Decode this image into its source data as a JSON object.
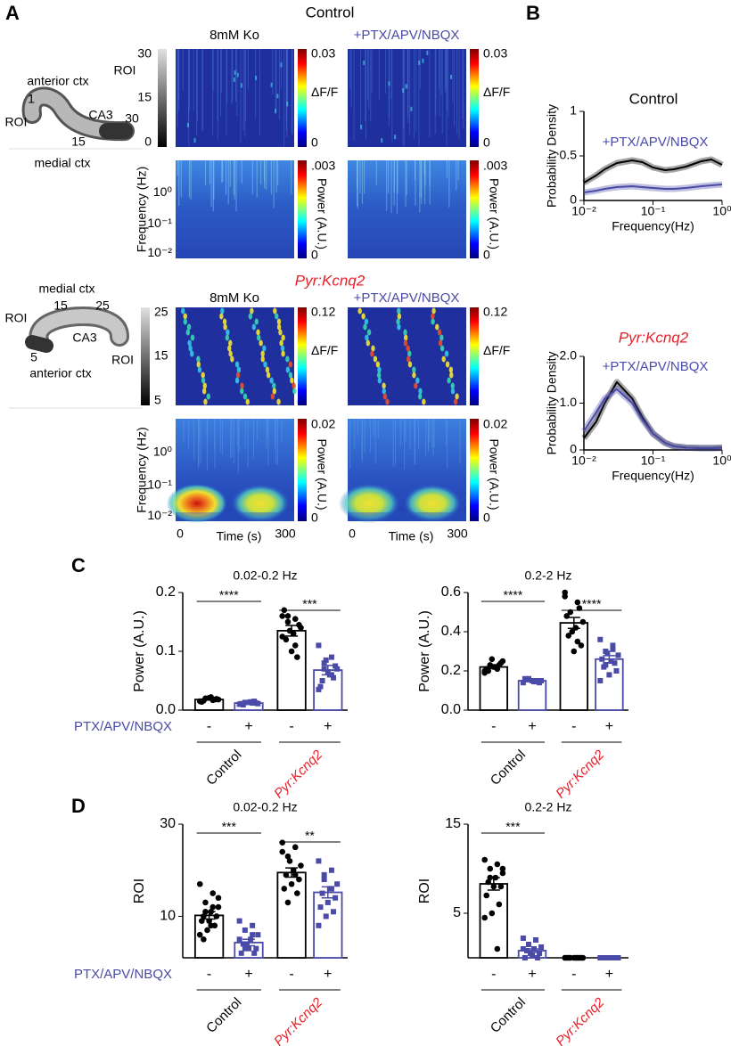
{
  "figure": {
    "panels": [
      "A",
      "B",
      "C",
      "D"
    ],
    "control": {
      "title": "Control",
      "columns": [
        "8mM Ko",
        "+PTX/APV/NBQX"
      ],
      "roi_label": "ROI",
      "roi_ticks": [
        "30",
        "15",
        "0"
      ],
      "dff_label": "ΔF/F",
      "dff_ticks": [
        "0.03",
        "0"
      ],
      "power_label": "Power (A.U.)",
      "power_ticks": [
        ".003",
        "0"
      ],
      "freq_label": "Frequency (Hz)",
      "freq_ticks": [
        "10⁰",
        "10⁻¹",
        "10⁻²"
      ],
      "map": [
        "anterior ctx",
        "1",
        "ROI",
        "CA3",
        "30",
        "15",
        "medial ctx"
      ]
    },
    "kcnq2": {
      "title": "Pyr:Kcnq2",
      "columns": [
        "8mM Ko",
        "+PTX/APV/NBQX"
      ],
      "roi_label": "ROI",
      "roi_ticks": [
        "25",
        "15",
        "5"
      ],
      "dff_label": "ΔF/F",
      "dff_ticks": [
        "0.12"
      ],
      "power_label": "Power (A.U.)",
      "power_ticks": [
        "0.02",
        "0"
      ],
      "freq_label": "Frequency (Hz)",
      "freq_ticks": [
        "10⁰",
        "10⁻¹",
        "10⁻²"
      ],
      "time_label": "Time (s)",
      "time_ticks": [
        "0",
        "300"
      ],
      "map": [
        "medial ctx",
        "15",
        "25",
        "ROI",
        "CA3",
        "5",
        "anterior ctx"
      ]
    }
  },
  "chart_data": [
    {
      "type": "line",
      "title": "Control",
      "xlabel": "Frequency(Hz)",
      "ylabel": "Probability Density",
      "log_x": true,
      "xlim": [
        0.01,
        1
      ],
      "ylim": [
        0,
        1
      ],
      "xticks": [
        {
          "value": 0.01,
          "label": "10⁻²"
        },
        {
          "value": 0.1,
          "label": "10⁻¹"
        },
        {
          "value": 1,
          "label": "10⁰"
        }
      ],
      "yticks": [
        0,
        0.5,
        1
      ],
      "x": [
        0.01,
        0.015,
        0.02,
        0.03,
        0.05,
        0.07,
        0.1,
        0.15,
        0.2,
        0.3,
        0.5,
        0.7,
        1
      ],
      "series": [
        {
          "color": "#000000",
          "values": [
            0.2,
            0.28,
            0.35,
            0.42,
            0.45,
            0.43,
            0.37,
            0.34,
            0.35,
            0.38,
            0.44,
            0.46,
            0.4
          ]
        },
        {
          "name": "+PTX/APV/NBQX",
          "color": "#4a4aa8",
          "values": [
            0.09,
            0.11,
            0.13,
            0.15,
            0.16,
            0.15,
            0.14,
            0.13,
            0.13,
            0.14,
            0.16,
            0.17,
            0.18
          ]
        }
      ]
    },
    {
      "type": "line",
      "title": "Pyr:Kcnq2",
      "title_color": "#e8202a",
      "title_italic": true,
      "xlabel": "Frequency(Hz)",
      "ylabel": "Probability Density",
      "log_x": true,
      "xlim": [
        0.01,
        1
      ],
      "ylim": [
        0,
        2
      ],
      "xticks": [
        {
          "value": 0.01,
          "label": "10⁻²"
        },
        {
          "value": 0.1,
          "label": "10⁻¹"
        },
        {
          "value": 1,
          "label": "10⁰"
        }
      ],
      "yticks": [
        0,
        {
          "value": 1,
          "label": "1.0"
        },
        {
          "value": 2,
          "label": "2.0"
        }
      ],
      "x": [
        0.01,
        0.015,
        0.02,
        0.03,
        0.05,
        0.07,
        0.1,
        0.15,
        0.2,
        0.3,
        0.5,
        0.7,
        1
      ],
      "series": [
        {
          "color": "#000000",
          "values": [
            0.25,
            0.6,
            1.0,
            1.45,
            1.1,
            0.7,
            0.35,
            0.15,
            0.08,
            0.05,
            0.04,
            0.04,
            0.05
          ]
        },
        {
          "name": "+PTX/APV/NBQX",
          "color": "#4a4aa8",
          "values": [
            0.4,
            0.8,
            1.1,
            1.3,
            1.0,
            0.65,
            0.35,
            0.15,
            0.08,
            0.05,
            0.04,
            0.04,
            0.04
          ]
        }
      ]
    },
    {
      "type": "bar",
      "title": "0.02-0.2 Hz",
      "ylabel": "Power (A.U.)",
      "treatment_label": "PTX/APV/NBQX",
      "treatment_color": "#4a4aa8",
      "categories": [
        "-",
        "+",
        "-",
        "+"
      ],
      "groups": [
        "Control",
        "Pyr:Kcnq2"
      ],
      "group_colors": [
        "#000000",
        "#e8202a"
      ],
      "group_italic": [
        false,
        true
      ],
      "colors": [
        "#000000",
        "#4a4aa8",
        "#000000",
        "#4a4aa8"
      ],
      "markers": [
        "circle",
        "square",
        "circle",
        "square"
      ],
      "ylim": [
        0,
        0.2
      ],
      "yticks": [
        {
          "value": 0,
          "label": "0.0"
        },
        0.1,
        0.2
      ],
      "values": [
        0.018,
        0.012,
        0.135,
        0.068
      ],
      "errors": [
        0.001,
        0.001,
        0.009,
        0.008
      ],
      "points": [
        [
          0.015,
          0.017,
          0.02,
          0.018,
          0.022,
          0.016,
          0.019,
          0.021,
          0.014,
          0.018
        ],
        [
          0.01,
          0.012,
          0.013,
          0.011,
          0.014,
          0.009,
          0.012,
          0.013,
          0.011,
          0.015
        ],
        [
          0.16,
          0.155,
          0.15,
          0.14,
          0.13,
          0.12,
          0.145,
          0.1,
          0.17,
          0.09,
          0.135,
          0.125,
          0.11,
          0.16
        ],
        [
          0.11,
          0.09,
          0.08,
          0.07,
          0.06,
          0.05,
          0.075,
          0.065,
          0.04,
          0.055,
          0.085,
          0.035,
          0.06,
          0.07
        ]
      ],
      "significance": [
        "****",
        "***"
      ]
    },
    {
      "type": "bar",
      "title": "0.2-2 Hz",
      "ylabel": "Power (A.U.)",
      "categories": [
        "-",
        "+",
        "-",
        "+"
      ],
      "groups": [
        "Control",
        "Pyr:Kcnq2"
      ],
      "group_colors": [
        "#000000",
        "#e8202a"
      ],
      "group_italic": [
        false,
        true
      ],
      "colors": [
        "#000000",
        "#4a4aa8",
        "#000000",
        "#4a4aa8"
      ],
      "markers": [
        "circle",
        "square",
        "circle",
        "square"
      ],
      "ylim": [
        0,
        0.6
      ],
      "yticks": [
        {
          "value": 0,
          "label": "0.0"
        },
        0.2,
        0.4,
        0.6
      ],
      "values": [
        0.22,
        0.15,
        0.445,
        0.26
      ],
      "errors": [
        0.008,
        0.004,
        0.028,
        0.018
      ],
      "points": [
        [
          0.19,
          0.21,
          0.23,
          0.25,
          0.22,
          0.2,
          0.24,
          0.22,
          0.21,
          0.23,
          0.26,
          0.2
        ],
        [
          0.14,
          0.15,
          0.16,
          0.15,
          0.145,
          0.155,
          0.14,
          0.15,
          0.16,
          0.15
        ],
        [
          0.6,
          0.55,
          0.5,
          0.45,
          0.42,
          0.38,
          0.33,
          0.3,
          0.48,
          0.52,
          0.4,
          0.58,
          0.35
        ],
        [
          0.36,
          0.33,
          0.3,
          0.28,
          0.25,
          0.22,
          0.2,
          0.18,
          0.26,
          0.24,
          0.29,
          0.15,
          0.31,
          0.23
        ]
      ],
      "significance": [
        "****",
        "****"
      ]
    },
    {
      "type": "bar",
      "title": "0.02-0.2 Hz",
      "ylabel": "ROI",
      "treatment_label": "PTX/APV/NBQX",
      "treatment_color": "#4a4aa8",
      "categories": [
        "-",
        "+",
        "-",
        "+"
      ],
      "groups": [
        "Control",
        "Pyr:Kcnq2"
      ],
      "group_colors": [
        "#000000",
        "#e8202a"
      ],
      "group_italic": [
        false,
        true
      ],
      "colors": [
        "#000000",
        "#4a4aa8",
        "#000000",
        "#4a4aa8"
      ],
      "markers": [
        "circle",
        "square",
        "circle",
        "square"
      ],
      "ylim": [
        1,
        30
      ],
      "yticks": [
        10,
        30
      ],
      "values": [
        10.2,
        4.3,
        19.5,
        15.2
      ],
      "errors": [
        0.8,
        0.7,
        1.0,
        1.2
      ],
      "points": [
        [
          17,
          15,
          13,
          12,
          11,
          10,
          10,
          9,
          9,
          8,
          7,
          6,
          12,
          11,
          14,
          8,
          5
        ],
        [
          9,
          8,
          7,
          6,
          5,
          4,
          3,
          3,
          2,
          2,
          4,
          5,
          6,
          3
        ],
        [
          26,
          25,
          23,
          21,
          20,
          19,
          18,
          17,
          16,
          15,
          22,
          24,
          19,
          13
        ],
        [
          22,
          20,
          18,
          17,
          16,
          15,
          14,
          13,
          12,
          11,
          10,
          8,
          16,
          19
        ]
      ],
      "significance": [
        "***",
        "**"
      ]
    },
    {
      "type": "bar",
      "title": "0.2-2 Hz",
      "ylabel": "ROI",
      "categories": [
        "-",
        "+",
        "-",
        "+"
      ],
      "groups": [
        "Control",
        "Pyr:Kcnq2"
      ],
      "group_colors": [
        "#000000",
        "#e8202a"
      ],
      "group_italic": [
        false,
        true
      ],
      "colors": [
        "#000000",
        "#4a4aa8",
        "#000000",
        "#4a4aa8"
      ],
      "markers": [
        "circle",
        "square",
        "circle",
        "square"
      ],
      "ylim": [
        0,
        15
      ],
      "yticks": [
        5,
        15
      ],
      "values": [
        8.3,
        0.8,
        0,
        0
      ],
      "errors": [
        0.7,
        0.2,
        0,
        0
      ],
      "points": [
        [
          11,
          10.5,
          10,
          9.5,
          9,
          8.5,
          8,
          8,
          7,
          6,
          5,
          4.5,
          1,
          9,
          10
        ],
        [
          2.2,
          2,
          1.5,
          1.2,
          1,
          0.8,
          0.5,
          0.3,
          0,
          0,
          0.5,
          1
        ],
        [
          0,
          0,
          0,
          0,
          0,
          0,
          0,
          0,
          0,
          0
        ],
        [
          0,
          0,
          0,
          0,
          0,
          0,
          0,
          0
        ]
      ],
      "significance": [
        "***"
      ]
    }
  ]
}
